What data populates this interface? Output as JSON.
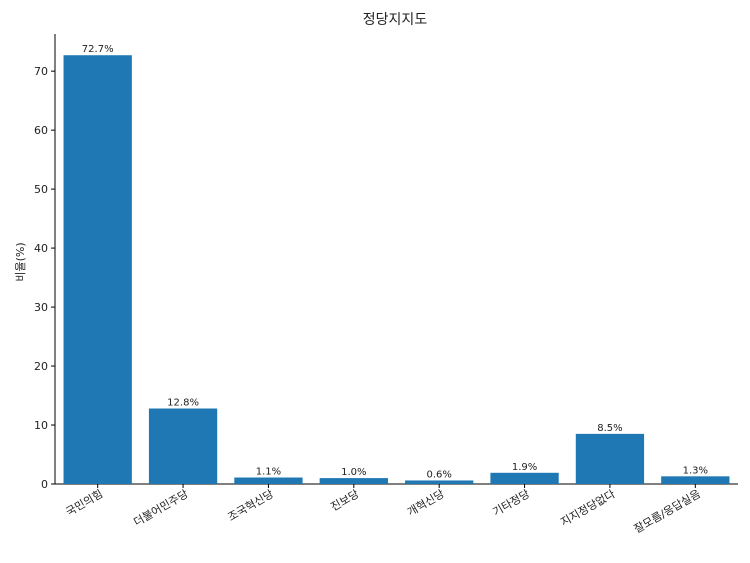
{
  "chart_data": {
    "type": "bar",
    "title": "정당지지도",
    "xlabel": "",
    "ylabel": "비율(%)",
    "ylim": [
      0,
      76.3
    ],
    "yticks": [
      0,
      10,
      20,
      30,
      40,
      50,
      60,
      70
    ],
    "categories": [
      "국민의힘",
      "더불어민주당",
      "조국혁신당",
      "진보당",
      "개혁신당",
      "기타정당",
      "지지정당없다",
      "잘모름/응답실음"
    ],
    "values": [
      72.7,
      12.8,
      1.1,
      1.0,
      0.6,
      1.9,
      8.5,
      1.3
    ],
    "data_labels": [
      "72.7%",
      "12.8%",
      "1.1%",
      "1.0%",
      "0.6%",
      "1.9%",
      "8.5%",
      "1.3%"
    ],
    "bar_color": "#1f77b4",
    "grid": false,
    "legend": "none"
  }
}
